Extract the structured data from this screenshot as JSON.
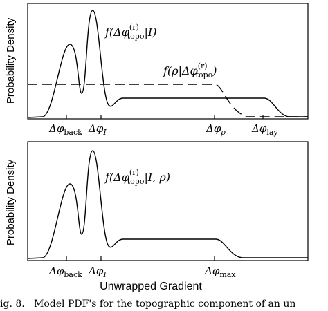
{
  "chart_data": [
    {
      "type": "line",
      "ylabel": "Probability Density",
      "xlabel": "",
      "x_ticks": [
        {
          "name": "phi-back",
          "sym": "Δφ",
          "sub": "back"
        },
        {
          "name": "phi-I",
          "sym": "Δφ",
          "sub": "I"
        },
        {
          "name": "phi-rho",
          "sym": "Δφ",
          "sub": "ρ"
        },
        {
          "name": "phi-lay",
          "sym": "Δφ",
          "sub": "lay"
        }
      ],
      "annotations": [
        {
          "name": "f-topo-given-I",
          "pre": "f(Δφ",
          "sup": "(r)",
          "sub": "topo",
          "post": "|I)"
        },
        {
          "name": "f-rho-given-topo",
          "pre": "f(ρ|Δφ",
          "sup": "(r)",
          "sub": "topo",
          "post": ")"
        }
      ],
      "series": [
        {
          "style": "solid",
          "x": [
            0,
            0.12,
            0.2,
            0.3,
            0.4,
            0.53,
            0.62,
            0.72,
            1.0
          ],
          "y": [
            0.02,
            0.78,
            0.45,
            0.92,
            0.4,
            0.27,
            0.27,
            0.27,
            0.02
          ]
        },
        {
          "style": "dashed",
          "x": [
            0,
            0.62,
            0.7,
            1.0
          ],
          "y": [
            0.4,
            0.4,
            0.0,
            0.0
          ]
        }
      ]
    },
    {
      "type": "line",
      "ylabel": "Probability Density",
      "xlabel": "Unwrapped Gradient",
      "x_ticks": [
        {
          "name": "phi-back",
          "sym": "Δφ",
          "sub": "back"
        },
        {
          "name": "phi-I",
          "sym": "Δφ",
          "sub": "I"
        },
        {
          "name": "phi-max",
          "sym": "Δφ",
          "sub": "max"
        }
      ],
      "annotations": [
        {
          "name": "f-topo-given-I-rho",
          "pre": "f(Δφ",
          "sup": "(r)",
          "sub": "topo",
          "post": "|I, ρ)"
        }
      ],
      "series": [
        {
          "style": "solid",
          "x": [
            0,
            0.12,
            0.2,
            0.3,
            0.4,
            0.53,
            0.62,
            1.0
          ],
          "y": [
            0.02,
            0.78,
            0.45,
            0.95,
            0.4,
            0.27,
            0.02,
            0.02
          ]
        }
      ]
    }
  ],
  "caption": "ig. 8.   Model PDF's for the topographic component of an un"
}
